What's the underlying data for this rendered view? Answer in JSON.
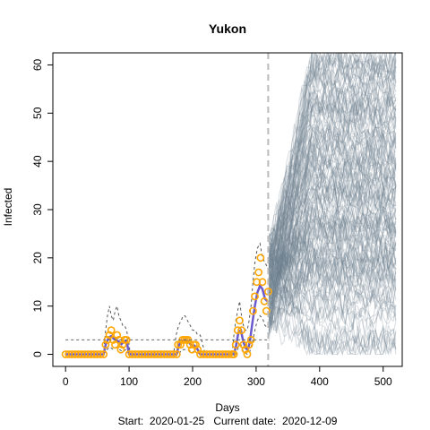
{
  "chart_data": {
    "type": "line",
    "title": "Yukon",
    "xlabel": "Days",
    "ylabel": "Infected",
    "footer": {
      "start_label": "Start:",
      "start_date": "2020-01-25",
      "current_label": "Current date:",
      "current_date": "2020-12-09"
    },
    "xlim": [
      -20,
      530
    ],
    "ylim": [
      -2.5,
      62.5
    ],
    "x_ticks": [
      0,
      100,
      200,
      300,
      400,
      500
    ],
    "y_ticks": [
      0,
      10,
      20,
      30,
      40,
      50,
      60
    ],
    "current_day": 319,
    "threshold_level": 3,
    "threshold_range": [
      0,
      320
    ],
    "colors": {
      "observed_points": "#FFA500",
      "smoothed_fit": "#6A5ACD",
      "confidence_band": "#555555",
      "simulations": "#708090",
      "current_date_line": "#BBBBBB"
    },
    "series": [
      {
        "name": "",
        "kind": "observed",
        "points": [
          [
            0,
            0
          ],
          [
            5,
            0
          ],
          [
            10,
            0
          ],
          [
            15,
            0
          ],
          [
            20,
            0
          ],
          [
            25,
            0
          ],
          [
            30,
            0
          ],
          [
            35,
            0
          ],
          [
            40,
            0
          ],
          [
            45,
            0
          ],
          [
            50,
            0
          ],
          [
            55,
            0
          ],
          [
            60,
            0
          ],
          [
            63,
            2
          ],
          [
            66,
            3
          ],
          [
            69,
            4
          ],
          [
            72,
            5
          ],
          [
            75,
            3
          ],
          [
            78,
            2
          ],
          [
            81,
            4
          ],
          [
            84,
            3
          ],
          [
            87,
            1
          ],
          [
            90,
            2
          ],
          [
            93,
            3
          ],
          [
            96,
            3
          ],
          [
            100,
            0
          ],
          [
            105,
            0
          ],
          [
            110,
            0
          ],
          [
            115,
            0
          ],
          [
            120,
            0
          ],
          [
            125,
            0
          ],
          [
            130,
            0
          ],
          [
            135,
            0
          ],
          [
            140,
            0
          ],
          [
            145,
            0
          ],
          [
            150,
            0
          ],
          [
            155,
            0
          ],
          [
            160,
            0
          ],
          [
            165,
            0
          ],
          [
            170,
            0
          ],
          [
            175,
            0
          ],
          [
            177,
            2
          ],
          [
            181,
            2
          ],
          [
            184,
            3
          ],
          [
            187,
            3
          ],
          [
            190,
            3
          ],
          [
            193,
            3
          ],
          [
            196,
            2
          ],
          [
            199,
            1
          ],
          [
            202,
            2
          ],
          [
            205,
            2
          ],
          [
            208,
            1
          ],
          [
            212,
            0
          ],
          [
            217,
            0
          ],
          [
            222,
            0
          ],
          [
            227,
            0
          ],
          [
            232,
            0
          ],
          [
            237,
            0
          ],
          [
            242,
            0
          ],
          [
            247,
            0
          ],
          [
            252,
            0
          ],
          [
            257,
            0
          ],
          [
            262,
            0
          ],
          [
            265,
            0
          ],
          [
            268,
            2
          ],
          [
            271,
            5
          ],
          [
            274,
            7
          ],
          [
            277,
            5
          ],
          [
            280,
            2
          ],
          [
            283,
            1
          ],
          [
            286,
            0
          ],
          [
            289,
            2
          ],
          [
            292,
            3
          ],
          [
            295,
            9
          ],
          [
            298,
            12
          ],
          [
            301,
            15
          ],
          [
            304,
            17
          ],
          [
            307,
            20
          ],
          [
            310,
            15
          ],
          [
            313,
            11
          ],
          [
            316,
            9
          ],
          [
            319,
            13
          ]
        ]
      },
      {
        "name": "",
        "kind": "fit",
        "points": [
          [
            0,
            0
          ],
          [
            60,
            0
          ],
          [
            63,
            2
          ],
          [
            68,
            3.5
          ],
          [
            72,
            3.8
          ],
          [
            76,
            3.2
          ],
          [
            80,
            3.0
          ],
          [
            84,
            2.6
          ],
          [
            88,
            2.1
          ],
          [
            92,
            2.6
          ],
          [
            96,
            2.8
          ],
          [
            100,
            0
          ],
          [
            175,
            0
          ],
          [
            178,
            1.8
          ],
          [
            183,
            2.8
          ],
          [
            188,
            3.0
          ],
          [
            193,
            2.8
          ],
          [
            198,
            1.8
          ],
          [
            203,
            1.8
          ],
          [
            208,
            1.0
          ],
          [
            212,
            0
          ],
          [
            265,
            0
          ],
          [
            268,
            1.5
          ],
          [
            272,
            4.5
          ],
          [
            276,
            5.0
          ],
          [
            280,
            2.5
          ],
          [
            284,
            1.2
          ],
          [
            287,
            1.0
          ],
          [
            290,
            2.5
          ],
          [
            294,
            6.5
          ],
          [
            298,
            10
          ],
          [
            302,
            12.8
          ],
          [
            306,
            14.2
          ],
          [
            310,
            13.5
          ],
          [
            314,
            11.5
          ],
          [
            318,
            11
          ]
        ]
      },
      {
        "name": "",
        "kind": "upper_band",
        "points": [
          [
            0,
            0
          ],
          [
            60,
            0
          ],
          [
            63,
            5
          ],
          [
            66,
            8
          ],
          [
            69,
            10
          ],
          [
            72,
            8
          ],
          [
            75,
            7
          ],
          [
            78,
            9
          ],
          [
            81,
            10
          ],
          [
            84,
            8
          ],
          [
            87,
            7
          ],
          [
            90,
            6
          ],
          [
            93,
            6
          ],
          [
            96,
            5
          ],
          [
            99,
            3
          ],
          [
            102,
            0
          ],
          [
            170,
            0
          ],
          [
            174,
            4
          ],
          [
            178,
            6
          ],
          [
            182,
            7
          ],
          [
            185,
            8
          ],
          [
            188,
            8
          ],
          [
            192,
            7
          ],
          [
            196,
            6
          ],
          [
            200,
            5
          ],
          [
            204,
            5
          ],
          [
            208,
            4
          ],
          [
            212,
            4
          ],
          [
            216,
            2
          ],
          [
            220,
            0
          ],
          [
            262,
            0
          ],
          [
            265,
            4
          ],
          [
            268,
            7
          ],
          [
            271,
            9
          ],
          [
            274,
            11
          ],
          [
            277,
            8
          ],
          [
            280,
            6
          ],
          [
            283,
            5
          ],
          [
            286,
            5
          ],
          [
            289,
            7
          ],
          [
            292,
            10
          ],
          [
            295,
            15
          ],
          [
            298,
            19
          ],
          [
            302,
            22
          ],
          [
            306,
            23
          ],
          [
            310,
            20
          ],
          [
            314,
            19
          ],
          [
            318,
            18
          ]
        ]
      },
      {
        "name": "",
        "kind": "lower_band",
        "points": [
          [
            60,
            0
          ],
          [
            65,
            1
          ],
          [
            70,
            1.5
          ],
          [
            75,
            1
          ],
          [
            80,
            1.5
          ],
          [
            85,
            1
          ],
          [
            90,
            0.5
          ],
          [
            95,
            1
          ],
          [
            100,
            0
          ],
          [
            178,
            0
          ],
          [
            183,
            1
          ],
          [
            188,
            1
          ],
          [
            193,
            1
          ],
          [
            198,
            0.5
          ],
          [
            205,
            0.5
          ],
          [
            212,
            0
          ],
          [
            268,
            0
          ],
          [
            272,
            1.5
          ],
          [
            276,
            2
          ],
          [
            280,
            0.5
          ],
          [
            286,
            0
          ],
          [
            290,
            0.5
          ],
          [
            294,
            2.5
          ],
          [
            298,
            5
          ],
          [
            302,
            7
          ],
          [
            306,
            8
          ],
          [
            310,
            7.5
          ],
          [
            314,
            6
          ],
          [
            318,
            5.5
          ]
        ]
      }
    ],
    "simulation_region": {
      "x_range": [
        320,
        520
      ],
      "y_at_start_range": [
        5,
        23
      ],
      "end_level_range": [
        1,
        62
      ]
    }
  }
}
